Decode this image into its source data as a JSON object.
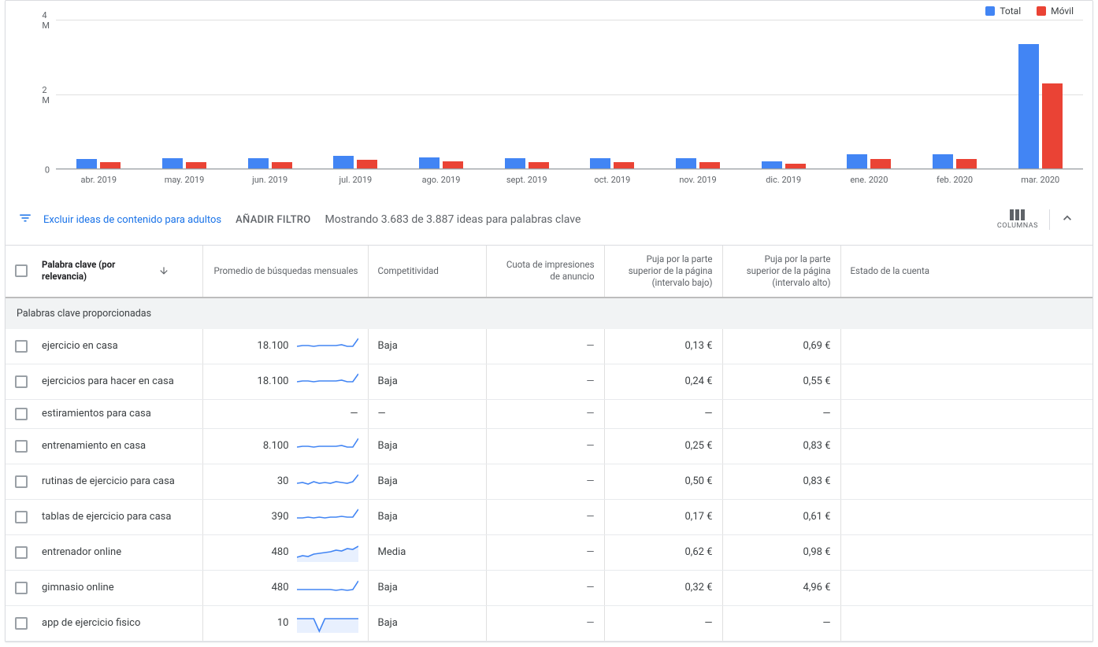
{
  "chart": {
    "type": "bar",
    "y_max": 4000000,
    "y_ticks": [
      {
        "value": 0,
        "label": "0"
      },
      {
        "value": 2000000,
        "label": "2 M"
      },
      {
        "value": 4000000,
        "label": "4 M"
      }
    ],
    "grid_color": "#e0e0e0",
    "background_color": "#ffffff",
    "series": [
      {
        "name": "Total",
        "color": "#4285f4"
      },
      {
        "name": "Móvil",
        "color": "#ea4335"
      }
    ],
    "months": [
      {
        "label": "abr. 2019",
        "total": 280000,
        "movil": 180000
      },
      {
        "label": "may. 2019",
        "total": 300000,
        "movil": 200000
      },
      {
        "label": "jun. 2019",
        "total": 300000,
        "movil": 200000
      },
      {
        "label": "jul. 2019",
        "total": 360000,
        "movil": 250000
      },
      {
        "label": "ago. 2019",
        "total": 320000,
        "movil": 220000
      },
      {
        "label": "sept. 2019",
        "total": 300000,
        "movil": 200000
      },
      {
        "label": "oct. 2019",
        "total": 300000,
        "movil": 200000
      },
      {
        "label": "nov. 2019",
        "total": 300000,
        "movil": 200000
      },
      {
        "label": "dic. 2019",
        "total": 220000,
        "movil": 150000
      },
      {
        "label": "ene. 2020",
        "total": 400000,
        "movil": 280000
      },
      {
        "label": "feb. 2020",
        "total": 400000,
        "movil": 280000
      },
      {
        "label": "mar. 2020",
        "total": 3350000,
        "movil": 2300000
      }
    ]
  },
  "toolbar": {
    "exclude_link": "Excluir ideas de contenido para adultos",
    "add_filter": "AÑADIR FILTRO",
    "showing": "Mostrando 3.683 de 3.887 ideas para palabras clave",
    "columns_label": "COLUMNAS"
  },
  "table": {
    "headers": {
      "keyword": "Palabra clave (por relevancia)",
      "avg": "Promedio de búsquedas mensuales",
      "comp": "Competitividad",
      "imp": "Cuota de impresiones de anuncio",
      "bid_low": "Puja por la parte superior de la página (intervalo bajo)",
      "bid_high": "Puja por la parte superior de la página (intervalo alto)",
      "state": "Estado de la cuenta"
    },
    "section_label": "Palabras clave proporcionadas",
    "spark_color": "#4285f4",
    "spark_fill": "#e8f0fe",
    "rows": [
      {
        "keyword": "ejercicio en casa",
        "avg": "18.100",
        "comp": "Baja",
        "imp": "—",
        "low": "0,13 €",
        "high": "0,69 €",
        "spark": [
          12,
          11,
          11,
          12,
          11,
          11,
          11,
          11,
          10,
          12,
          12,
          2
        ],
        "fill": false
      },
      {
        "keyword": "ejercicios para hacer en casa",
        "avg": "18.100",
        "comp": "Baja",
        "imp": "—",
        "low": "0,24 €",
        "high": "0,55 €",
        "spark": [
          12,
          11,
          11,
          12,
          11,
          11,
          11,
          11,
          10,
          12,
          12,
          2
        ],
        "fill": false
      },
      {
        "keyword": "estiramientos para casa",
        "avg": "—",
        "comp": "—",
        "imp": "—",
        "low": "—",
        "high": "—",
        "spark": null,
        "fill": false
      },
      {
        "keyword": "entrenamiento en casa",
        "avg": "8.100",
        "comp": "Baja",
        "imp": "—",
        "low": "0,25 €",
        "high": "0,83 €",
        "spark": [
          13,
          12,
          12,
          13,
          12,
          12,
          12,
          12,
          11,
          13,
          13,
          2
        ],
        "fill": false
      },
      {
        "keyword": "rutinas de ejercicio para casa",
        "avg": "30",
        "comp": "Baja",
        "imp": "—",
        "low": "0,50 €",
        "high": "0,83 €",
        "spark": [
          14,
          13,
          15,
          12,
          14,
          13,
          14,
          12,
          13,
          14,
          12,
          3
        ],
        "fill": false
      },
      {
        "keyword": "tablas de ejercicio para casa",
        "avg": "390",
        "comp": "Baja",
        "imp": "—",
        "low": "0,17 €",
        "high": "0,61 €",
        "spark": [
          13,
          13,
          12,
          13,
          12,
          13,
          12,
          12,
          11,
          12,
          12,
          2
        ],
        "fill": false
      },
      {
        "keyword": "entrenador online",
        "avg": "480",
        "comp": "Media",
        "imp": "—",
        "low": "0,62 €",
        "high": "0,98 €",
        "spark": [
          18,
          16,
          17,
          14,
          13,
          12,
          11,
          9,
          10,
          7,
          8,
          4
        ],
        "fill": true
      },
      {
        "keyword": "gimnasio online",
        "avg": "480",
        "comp": "Baja",
        "imp": "—",
        "low": "0,32 €",
        "high": "4,96 €",
        "spark": [
          14,
          14,
          14,
          14,
          14,
          14,
          14,
          15,
          14,
          15,
          14,
          3
        ],
        "fill": false
      },
      {
        "keyword": "app de ejercicio fisico",
        "avg": "10",
        "comp": "Baja",
        "imp": "—",
        "low": "—",
        "high": "—",
        "spark": [
          6,
          6,
          6,
          6,
          22,
          6,
          6,
          6,
          6,
          6,
          6,
          6
        ],
        "fill": true
      }
    ]
  }
}
